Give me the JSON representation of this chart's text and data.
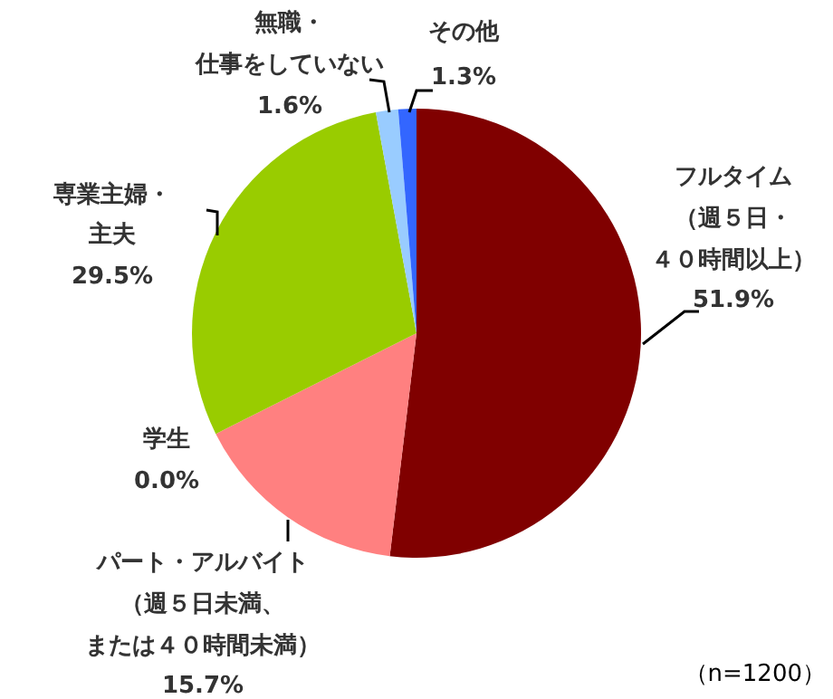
{
  "chart_data": {
    "type": "pie",
    "categories": [
      "フルタイム（週５日・４０時間以上）",
      "パート・アルバイト（週５日未満、または４０時間未満）",
      "学生",
      "専業主婦・主夫",
      "無職・仕事をしていない",
      "その他"
    ],
    "values": [
      51.9,
      15.7,
      0.0,
      29.5,
      1.6,
      1.3
    ],
    "value_labels": [
      "51.9%",
      "15.7%",
      "0.0%",
      "29.5%",
      "1.6%",
      "1.3%"
    ],
    "colors": [
      "#800000",
      "#ff8080",
      "#ffcc99",
      "#99cc00",
      "#99ccff",
      "#3366ff"
    ],
    "annotations": [
      "（n=1200）"
    ],
    "legend": false
  }
}
